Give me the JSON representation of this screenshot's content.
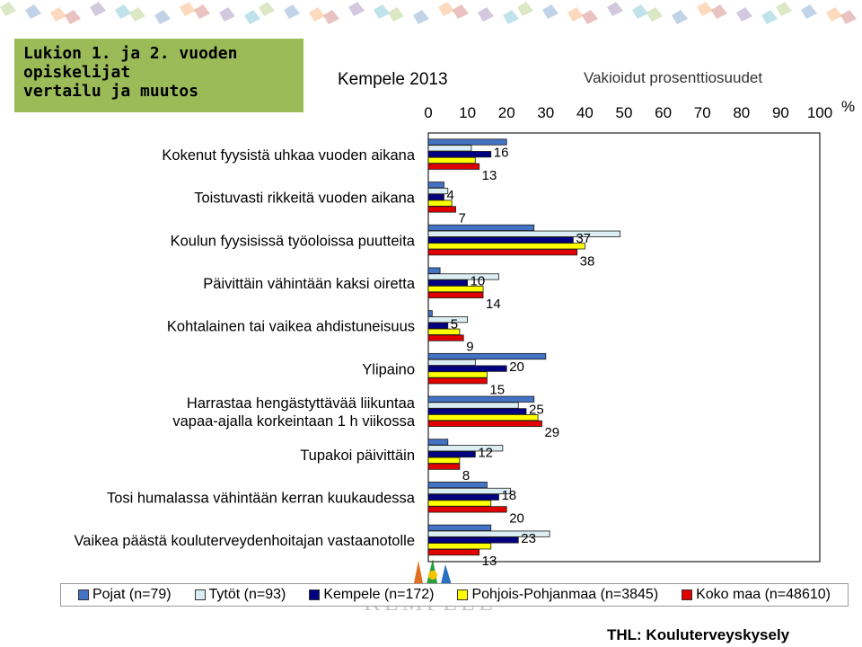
{
  "title_box": {
    "line1": "Lukion 1. ja 2. vuoden",
    "line2": "opiskelijat",
    "line3": "vertailu ja muutos"
  },
  "subtitle": "Kempele 2013",
  "unit_note": "Vakioidut prosenttiosuudet",
  "source": "THL: Kouluterveyskysely",
  "logo_text": "KEMPELE",
  "colors": {
    "pojat": "#4472c4",
    "tytot": "#dbeef4",
    "kempele": "#000080",
    "pohjois": "#ffff00",
    "koko": "#e00000",
    "title_box_bg": "#9bbb59"
  },
  "chart_data": {
    "type": "bar",
    "orientation": "horizontal",
    "xlim": [
      0,
      100
    ],
    "x_ticks": [
      "0",
      "10",
      "20",
      "30",
      "40",
      "50",
      "60",
      "70",
      "80",
      "90",
      "100"
    ],
    "x_unit": "%",
    "categories": [
      "Kokenut fyysistä uhkaa vuoden aikana",
      "Toistuvasti rikkeitä vuoden aikana",
      "Koulun fyysisissä työoloissa puutteita",
      "Päivittäin vähintään kaksi oiretta",
      "Kohtalainen tai vaikea ahdistuneisuus",
      "Ylipaino",
      "Harrastaa hengästyttävää liikuntaa vapaa-ajalla korkeintaan 1 h viikossa",
      "Tupakoi päivittäin",
      "Tosi humalassa vähintään kerran kuukaudessa",
      "Vaikea päästä kouluterveydenhoitajan vastaanotolle"
    ],
    "series": [
      {
        "name": "Pojat (n=79)",
        "values": [
          20,
          4,
          27,
          3,
          1,
          30,
          27,
          5,
          15,
          16
        ]
      },
      {
        "name": "Tytöt (n=93)",
        "values": [
          11,
          5,
          49,
          18,
          10,
          12,
          23,
          19,
          21,
          31
        ]
      },
      {
        "name": "Kempele (n=172)",
        "values": [
          16,
          4,
          37,
          10,
          5,
          20,
          25,
          12,
          18,
          23
        ]
      },
      {
        "name": "Pohjois-Pohjanmaa (n=3845)",
        "values": [
          12,
          6,
          40,
          14,
          8,
          15,
          28,
          8,
          16,
          16
        ]
      },
      {
        "name": "Koko maa (n=48610)",
        "values": [
          13,
          7,
          38,
          14,
          9,
          15,
          29,
          8,
          20,
          13
        ]
      }
    ],
    "data_labels": [
      [
        "16",
        "13"
      ],
      [
        "4",
        "7"
      ],
      [
        "37",
        "38"
      ],
      [
        "10",
        "14"
      ],
      [
        "5",
        "9"
      ],
      [
        "20",
        "15"
      ],
      [
        "25",
        "29"
      ],
      [
        "12",
        "8"
      ],
      [
        "18",
        "20"
      ],
      [
        "23",
        "13"
      ]
    ],
    "legend_position": "bottom",
    "grid": false
  }
}
